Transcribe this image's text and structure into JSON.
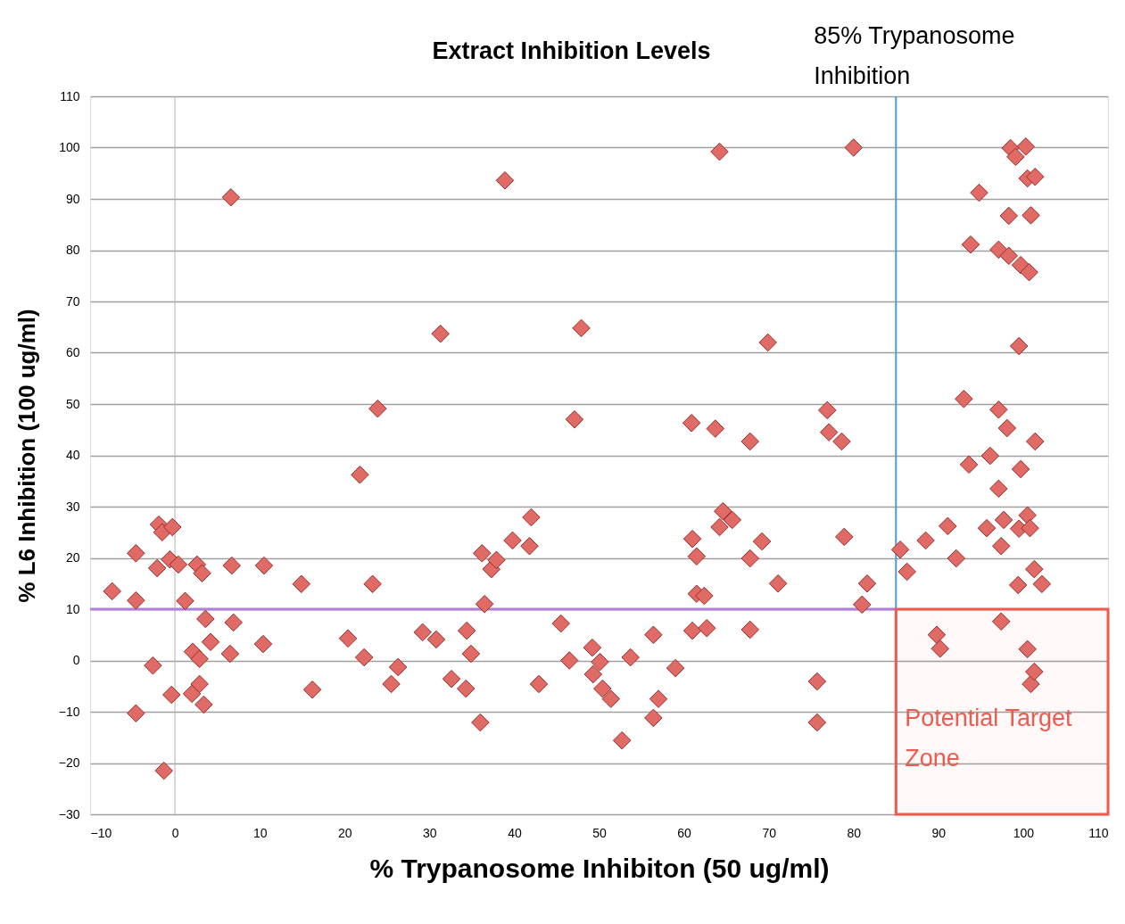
{
  "chart_data": {
    "type": "scatter",
    "title": "Extract Inhibition Levels",
    "xlabel": "% Trypanosome Inhibiton (50 ug/ml)",
    "ylabel": "% L6 Inhibition (100 ug/ml)",
    "x": [
      -7.4,
      -4.6,
      -4.6,
      -4.6,
      -2.6,
      -2.1,
      -1.9,
      -1.5,
      -1.3,
      -0.6,
      -0.3,
      -0.4,
      0.4,
      1.2,
      2.1,
      2.0,
      2.6,
      3.2,
      2.9,
      2.9,
      3.4,
      3.6,
      4.2,
      6.6,
      6.7,
      6.9,
      6.5,
      10.5,
      10.4,
      14.9,
      16.2,
      20.4,
      21.8,
      22.3,
      23.3,
      23.9,
      25.5,
      26.3,
      29.2,
      30.8,
      31.3,
      32.6,
      34.4,
      34.9,
      34.3,
      36.0,
      36.2,
      36.5,
      37.3,
      37.9,
      38.9,
      39.8,
      41.8,
      42.0,
      42.9,
      45.5,
      46.5,
      47.1,
      47.9,
      49.2,
      49.3,
      50.1,
      50.4,
      51.4,
      52.7,
      53.7,
      56.4,
      56.4,
      57.0,
      59.0,
      60.9,
      61.0,
      61.5,
      61.5,
      62.4,
      61.0,
      62.7,
      63.7,
      64.2,
      64.2,
      64.6,
      65.7,
      67.8,
      67.8,
      67.8,
      69.2,
      69.9,
      71.1,
      75.7,
      75.7,
      76.9,
      77.1,
      78.6,
      78.9,
      80.0,
      81.0,
      81.6,
      85.5,
      86.3,
      88.5,
      89.8,
      90.2,
      91.1,
      92.1,
      93.0,
      93.6,
      93.8,
      94.8,
      95.7,
      96.1,
      97.1,
      97.1,
      97.1,
      97.4,
      97.4,
      97.7,
      98.1,
      98.3,
      98.3,
      98.5,
      99.1,
      99.5,
      99.4,
      99.7,
      99.7,
      99.5,
      100.3,
      100.5,
      100.7,
      100.5,
      100.5,
      100.8,
      100.9,
      100.9,
      101.4,
      101.4,
      101.3,
      101.3,
      102.2
    ],
    "series": [
      {
        "color": "#e06a66",
        "values": [
          13.5,
          20.9,
          11.7,
          -10.3,
          -1.0,
          18.0,
          26.5,
          25.0,
          -21.5,
          19.7,
          26.0,
          -6.7,
          18.7,
          11.6,
          1.7,
          -6.5,
          18.7,
          17.0,
          -4.6,
          0.3,
          -8.6,
          8.1,
          3.6,
          90.3,
          18.5,
          7.4,
          1.3,
          18.5,
          3.2,
          14.9,
          -5.7,
          4.3,
          36.2,
          0.6,
          14.9,
          49.1,
          -4.6,
          -1.3,
          5.5,
          4.1,
          63.7,
          -3.6,
          5.8,
          1.3,
          -5.5,
          -12.1,
          20.9,
          11.0,
          17.8,
          19.6,
          93.6,
          23.4,
          22.3,
          27.9,
          -4.6,
          7.2,
          0.0,
          47.0,
          64.8,
          2.5,
          -2.7,
          -0.3,
          -5.5,
          -7.5,
          -15.6,
          0.6,
          5.0,
          -11.2,
          -7.5,
          -1.5,
          46.3,
          23.7,
          20.3,
          13.0,
          12.6,
          5.8,
          6.3,
          45.2,
          99.2,
          26.0,
          29.1,
          27.4,
          42.7,
          19.9,
          6.0,
          23.2,
          62.0,
          15.0,
          -4.1,
          -12.1,
          48.8,
          44.5,
          42.7,
          24.1,
          100.0,
          10.9,
          15.0,
          21.6,
          17.3,
          23.4,
          5.0,
          2.3,
          26.2,
          19.9,
          51.0,
          38.2,
          81.1,
          91.2,
          25.8,
          39.9,
          48.9,
          33.5,
          80.1,
          22.3,
          7.6,
          27.4,
          45.3,
          78.9,
          86.7,
          99.9,
          98.2,
          61.3,
          14.7,
          77.1,
          37.3,
          25.7,
          100.2,
          94.0,
          75.7,
          28.3,
          2.2,
          25.8,
          86.8,
          -4.6,
          94.3,
          42.7,
          -2.2,
          17.8,
          14.9
        ]
      }
    ],
    "marker": "diamond",
    "xlim": [
      -10,
      110
    ],
    "xticks": [
      -10,
      0,
      10,
      20,
      30,
      40,
      50,
      60,
      70,
      80,
      90,
      100,
      110
    ],
    "ylim": [
      -30,
      110
    ],
    "yticks": [
      -30,
      -20,
      -10,
      0,
      10,
      20,
      30,
      40,
      50,
      60,
      70,
      80,
      90,
      100,
      110
    ],
    "grid": "y",
    "ref_lines": [
      {
        "axis": "x",
        "value": 0,
        "color": "#b0b0b0"
      },
      {
        "axis": "x",
        "value": 85,
        "label": "85% Trypanosome\nInhibition",
        "color": "#4a9be0"
      },
      {
        "axis": "y",
        "value": 10,
        "color": "#b07fd9"
      }
    ],
    "bands": [
      {
        "axis": "x",
        "from": 85,
        "to": 110,
        "label": "Potential Target Zone",
        "color": "#ee5a4e"
      }
    ]
  }
}
